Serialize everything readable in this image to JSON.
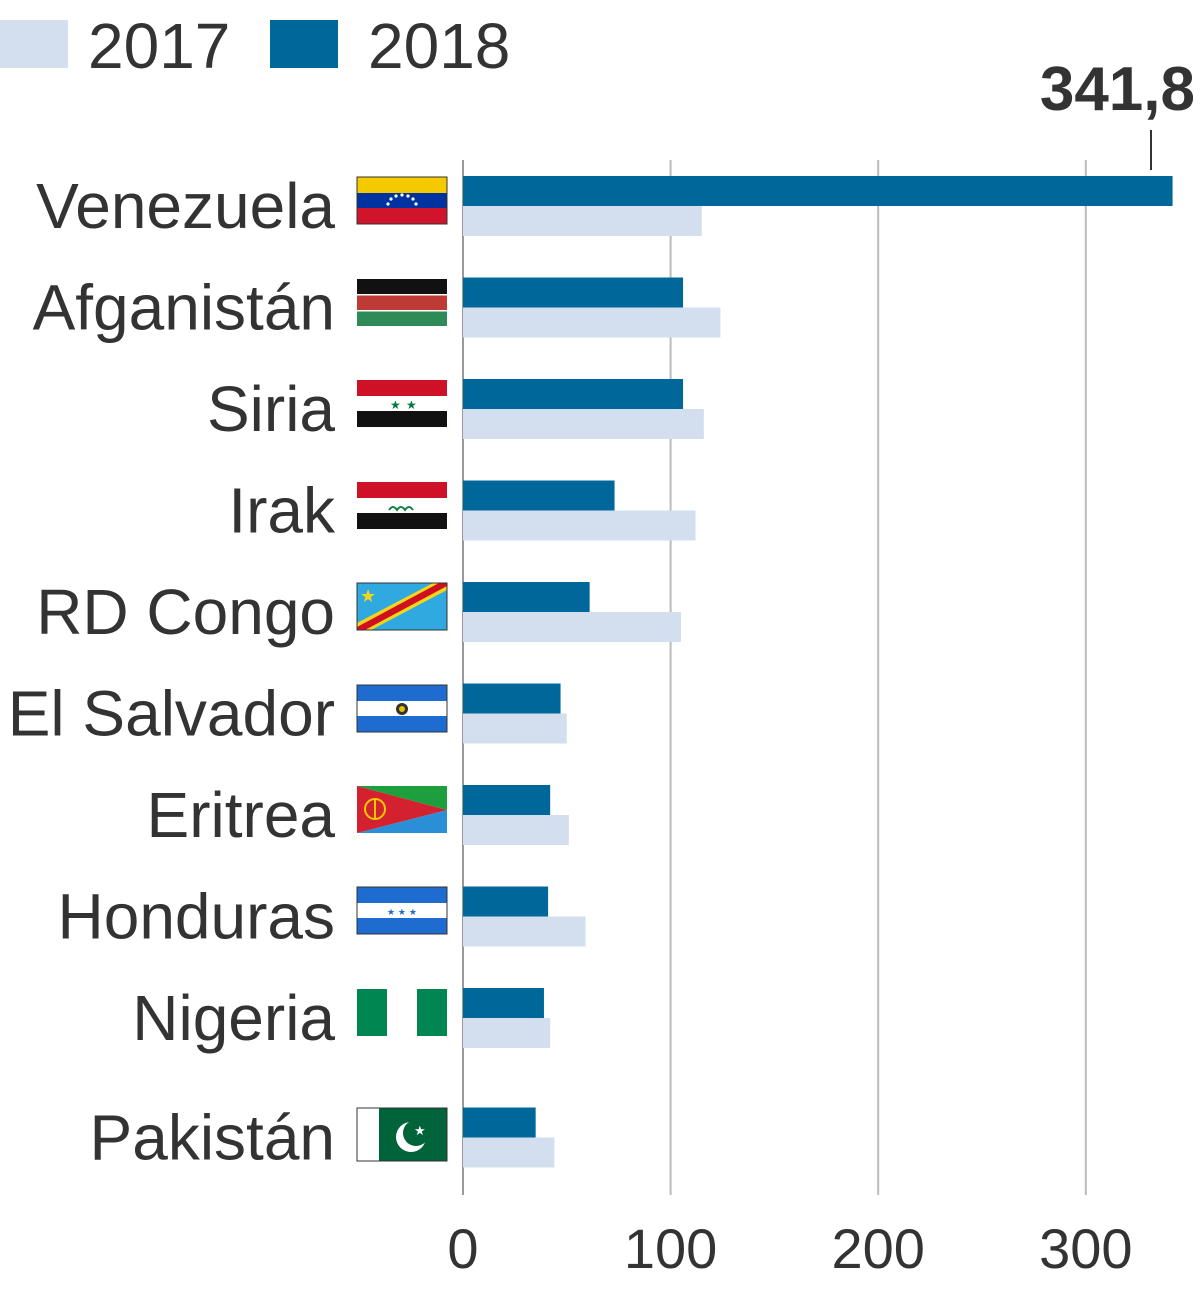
{
  "chart_data": {
    "type": "bar",
    "orientation": "horizontal",
    "title": "",
    "xlabel": "",
    "ylabel": "",
    "xlim": [
      0,
      345
    ],
    "ticks": [
      0,
      100,
      200,
      300
    ],
    "tick_labels": [
      "0",
      "100",
      "200",
      "300"
    ],
    "grid": true,
    "legend_position": "top-left",
    "categories": [
      "Venezuela",
      "Afganistán",
      "Siria",
      "Irak",
      "RD Congo",
      "El Salvador",
      "Eritrea",
      "Honduras",
      "Nigeria",
      "Pakistán"
    ],
    "series": [
      {
        "name": "2018",
        "color": "#00679b",
        "values": [
          341.8,
          106,
          106,
          73,
          61,
          47,
          42,
          41,
          39,
          35
        ]
      },
      {
        "name": "2017",
        "color": "#d3dfee",
        "values": [
          115,
          124,
          116,
          112,
          105,
          50,
          51,
          59,
          42,
          44
        ]
      }
    ],
    "annotation": {
      "category": "Venezuela",
      "series": "2018",
      "text": "341,8"
    }
  },
  "flags": [
    "venezuela-flag-icon",
    "afghanistan-flag-icon",
    "syria-flag-icon",
    "iraq-flag-icon",
    "dr-congo-flag-icon",
    "el-salvador-flag-icon",
    "eritrea-flag-icon",
    "honduras-flag-icon",
    "nigeria-flag-icon",
    "pakistan-flag-icon"
  ],
  "colors": {
    "text": "#333333",
    "grid": "#bbbbbb"
  }
}
